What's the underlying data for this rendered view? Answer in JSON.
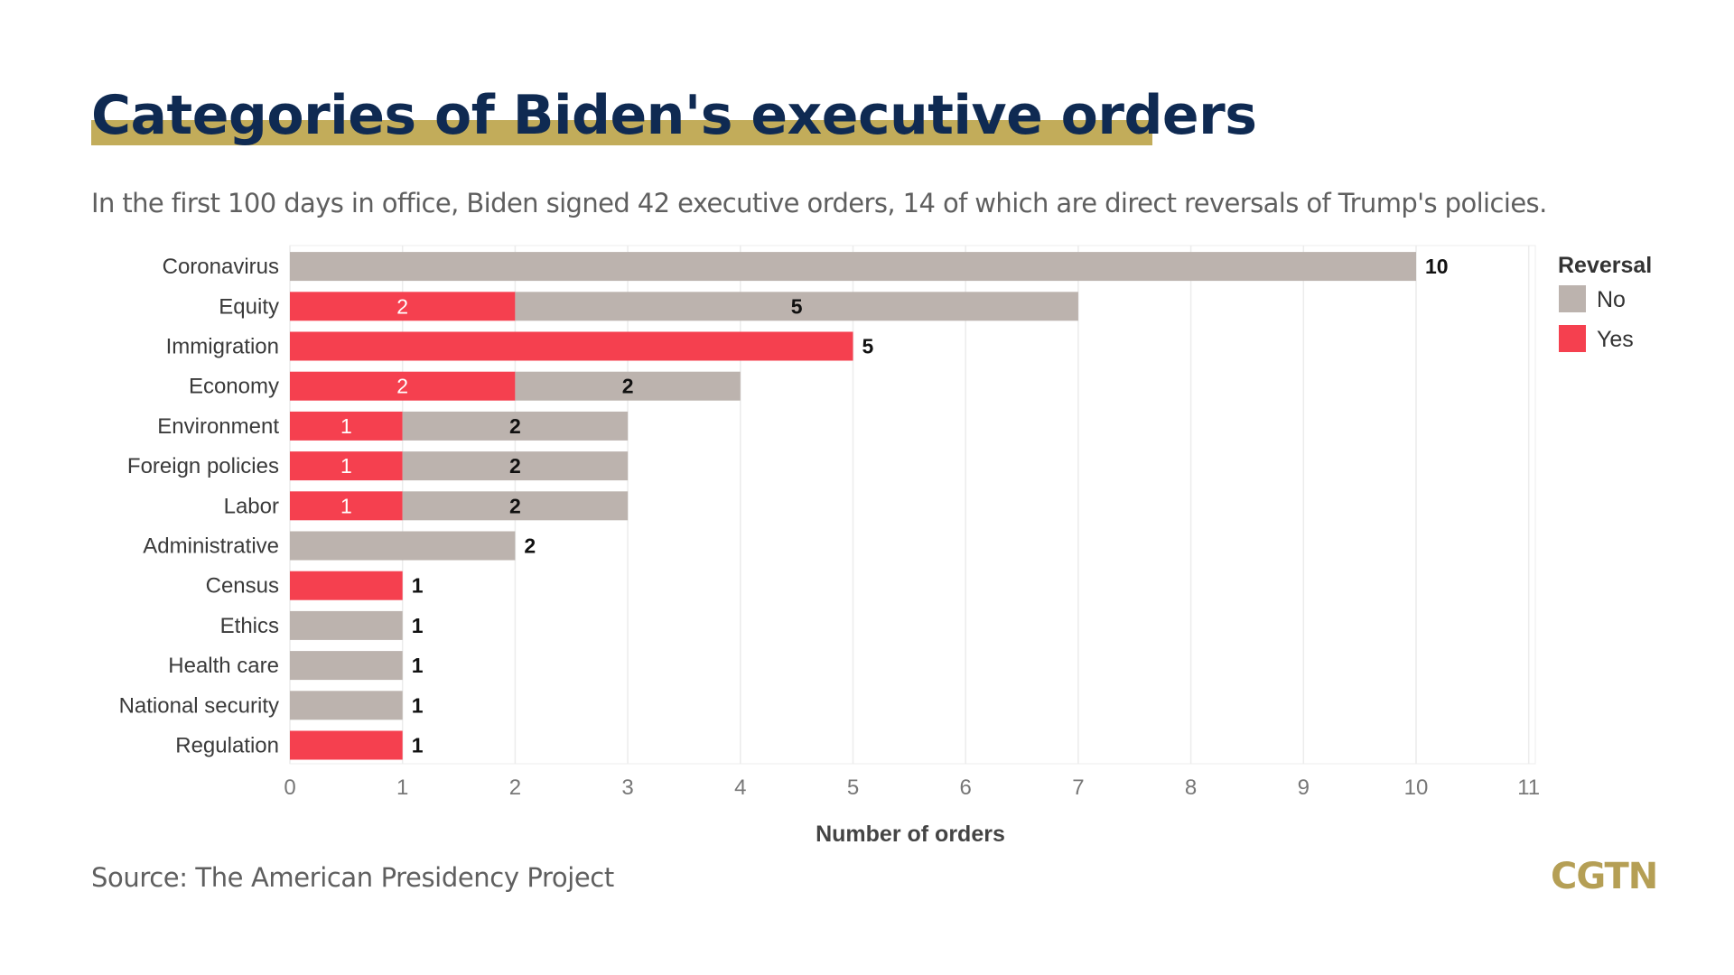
{
  "title": "Categories of Biden's executive orders",
  "subtitle": "In the first 100 days in office, Biden signed 42 executive orders, 14 of which are direct reversals of Trump's policies.",
  "source": "Source: The American Presidency Project",
  "brand": "CGTN",
  "colors": {
    "title": "#0f2a52",
    "highlight": "#c2ac5a",
    "no": "#bcb3ae",
    "yes": "#f5404f",
    "brand": "#b59f55"
  },
  "chart_data": {
    "type": "bar",
    "orientation": "horizontal",
    "stacked": true,
    "categories": [
      "Coronavirus",
      "Equity",
      "Immigration",
      "Economy",
      "Environment",
      "Foreign policies",
      "Labor",
      "Administrative",
      "Census",
      "Ethics",
      "Health care",
      "National security",
      "Regulation"
    ],
    "series": [
      {
        "name": "Yes",
        "color": "#f5404f",
        "values": [
          0,
          2,
          5,
          2,
          1,
          1,
          1,
          0,
          1,
          0,
          0,
          0,
          1
        ]
      },
      {
        "name": "No",
        "color": "#bcb3ae",
        "values": [
          10,
          5,
          0,
          2,
          2,
          2,
          2,
          2,
          0,
          1,
          1,
          1,
          0
        ]
      }
    ],
    "xlabel": "Number of orders",
    "xlim": [
      0,
      11
    ],
    "xticks": [
      0,
      1,
      2,
      3,
      4,
      5,
      6,
      7,
      8,
      9,
      10,
      11
    ],
    "legend": {
      "title": "Reversal",
      "entries": [
        "No",
        "Yes"
      ],
      "position": "right"
    },
    "grid": true
  }
}
